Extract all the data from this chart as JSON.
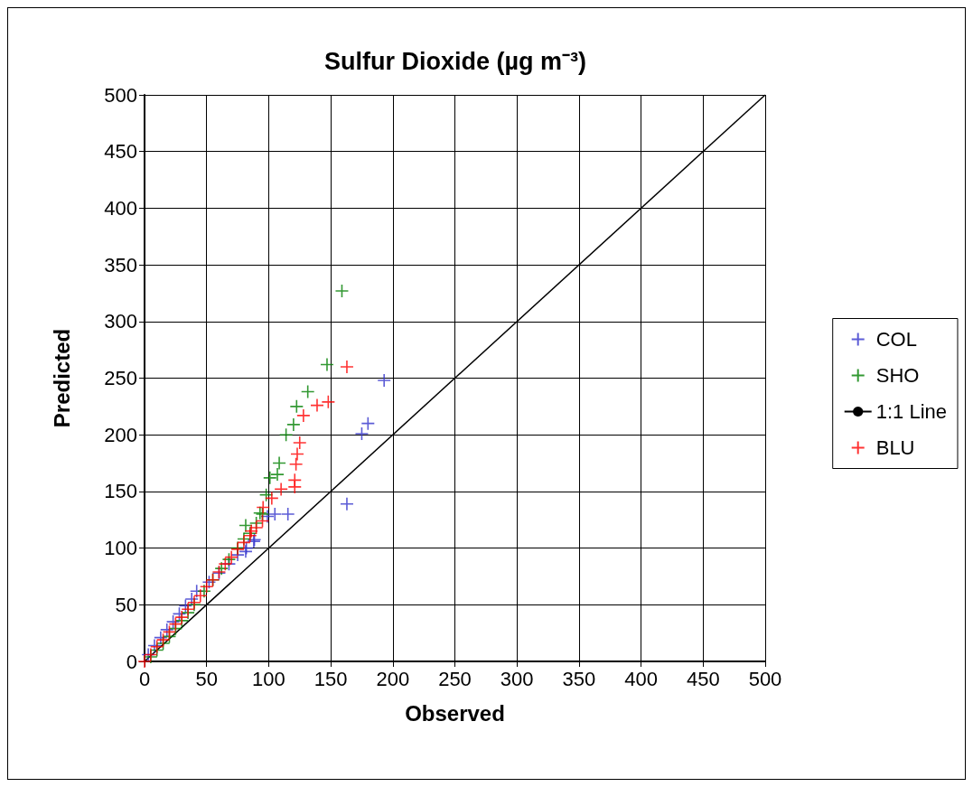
{
  "chart_data": {
    "type": "scatter",
    "title": "Sulfur Dioxide (µg m⁻³)",
    "xlabel": "Observed",
    "ylabel": "Predicted",
    "xlim": [
      0,
      500
    ],
    "ylim": [
      0,
      500
    ],
    "xticks": [
      0,
      50,
      100,
      150,
      200,
      250,
      300,
      350,
      400,
      450,
      500
    ],
    "yticks": [
      0,
      50,
      100,
      150,
      200,
      250,
      300,
      350,
      400,
      450,
      500
    ],
    "grid": true,
    "legend": "right",
    "marker": "cross",
    "series": [
      {
        "name": "COL",
        "color": "#3333cc",
        "x": [
          3,
          8,
          13,
          18,
          23,
          28,
          33,
          38,
          42,
          52,
          60,
          68,
          75,
          81.5,
          82,
          88,
          88.5,
          99,
          105,
          115.5,
          163,
          175,
          180,
          193
        ],
        "values": [
          6,
          14,
          21,
          28,
          35,
          42,
          49,
          55,
          62,
          70,
          78,
          86,
          94,
          97,
          100,
          106,
          107.5,
          128,
          130,
          130,
          139,
          201,
          210,
          248
        ]
      },
      {
        "name": "SHO",
        "color": "#008000",
        "x": [
          5,
          10,
          15,
          20,
          25,
          30,
          35,
          40,
          48,
          55,
          62,
          68,
          75,
          80,
          81.5,
          85,
          90,
          93,
          95,
          98,
          101,
          107,
          108.5,
          114,
          120,
          122.5,
          131.5,
          147,
          159
        ],
        "values": [
          4,
          10,
          16,
          22,
          29,
          36,
          43,
          50,
          62,
          72,
          82,
          90,
          100,
          108,
          120,
          113,
          122,
          131,
          130,
          147,
          162,
          165,
          175,
          200,
          209,
          225,
          238,
          262,
          327
        ]
      },
      {
        "name": "1:1 Line",
        "type": "line",
        "color": "#000000",
        "marker": "none",
        "x": [
          0,
          500
        ],
        "values": [
          0,
          500
        ]
      },
      {
        "name": "BLU",
        "color": "#ff0000",
        "x": [
          0,
          5,
          10,
          15,
          20,
          25,
          30,
          35,
          40,
          45,
          50,
          55,
          60,
          65,
          70,
          75,
          80,
          85,
          86,
          90,
          95,
          95.5,
          102.5,
          110,
          121,
          121,
          122,
          123,
          125,
          128,
          139,
          148,
          163
        ],
        "values": [
          0,
          6,
          13,
          19,
          26,
          33,
          39,
          46,
          52,
          58,
          66,
          72,
          79,
          86,
          92,
          99,
          105,
          111,
          115,
          118,
          124,
          136,
          144,
          152,
          154,
          160,
          174,
          183,
          193,
          217,
          226,
          229,
          260
        ]
      }
    ]
  }
}
